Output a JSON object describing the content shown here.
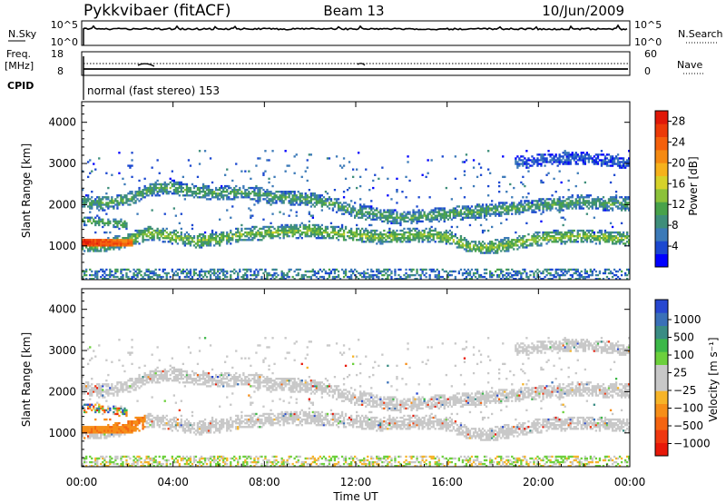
{
  "header": {
    "station": "Pykkvibaer (fitACF)",
    "beam": "Beam 13",
    "date": "10/Jun/2009"
  },
  "nsky_panel": {
    "left_label": "N.Sky",
    "right_label": "N.Search",
    "ticks_left": [
      "10^5",
      "10^0"
    ],
    "ticks_right": [
      "10^5",
      "10^0"
    ]
  },
  "freq_panel": {
    "left_label_1": "Freq.",
    "left_label_2": "[MHz]",
    "right_label": "Nave",
    "ticks_left": [
      "18",
      "8"
    ],
    "ticks_right": [
      "60",
      "0"
    ]
  },
  "cpid": {
    "label": "CPID",
    "text": "normal (fast stereo) 153"
  },
  "chart_data": [
    {
      "type": "heatmap",
      "panel": "power",
      "ylabel": "Slant Range [km]",
      "ylim": [
        180,
        4500
      ],
      "yticks": [
        1000,
        2000,
        3000,
        4000
      ],
      "xlim_hours": [
        0,
        24
      ],
      "colorbar": {
        "label": "Power [dB]",
        "range": [
          0,
          30
        ],
        "ticks": [
          "4",
          "8",
          "12",
          "16",
          "20",
          "24",
          "28"
        ],
        "colors": [
          "#0000ff",
          "#1b48d0",
          "#3c7ab8",
          "#3e8e7a",
          "#48a24a",
          "#8cc23a",
          "#d6d22a",
          "#f6b21c",
          "#f58a12",
          "#f4600c",
          "#ec3a08",
          "#e01808"
        ]
      },
      "bands": [
        {
          "name": "main",
          "points": [
            [
              0,
              1000
            ],
            [
              1,
              1000
            ],
            [
              2,
              1100
            ],
            [
              3,
              1300
            ],
            [
              4,
              1200
            ],
            [
              5,
              1100
            ],
            [
              6,
              1150
            ],
            [
              7,
              1250
            ],
            [
              8,
              1300
            ],
            [
              9,
              1320
            ],
            [
              10,
              1350
            ],
            [
              11,
              1300
            ],
            [
              12,
              1250
            ],
            [
              13,
              1200
            ],
            [
              14,
              1230
            ],
            [
              15,
              1250
            ],
            [
              16,
              1200
            ],
            [
              17,
              950
            ],
            [
              18,
              950
            ],
            [
              19,
              1050
            ],
            [
              20,
              1150
            ],
            [
              21,
              1200
            ],
            [
              22,
              1230
            ],
            [
              23,
              1180
            ],
            [
              24,
              1150
            ]
          ],
          "width": 170,
          "power": 14
        },
        {
          "name": "upper",
          "points": [
            [
              0,
              2050
            ],
            [
              1,
              2000
            ],
            [
              2,
              2100
            ],
            [
              3,
              2350
            ],
            [
              4,
              2400
            ],
            [
              5,
              2300
            ],
            [
              6,
              2250
            ],
            [
              7,
              2300
            ],
            [
              8,
              2200
            ],
            [
              9,
              2150
            ],
            [
              10,
              2100
            ],
            [
              11,
              2000
            ],
            [
              12,
              1800
            ],
            [
              13,
              1750
            ],
            [
              14,
              1650
            ],
            [
              15,
              1700
            ],
            [
              16,
              1750
            ],
            [
              17,
              1800
            ],
            [
              18,
              1850
            ],
            [
              19,
              1900
            ],
            [
              20,
              1950
            ],
            [
              21,
              2000
            ],
            [
              22,
              2050
            ],
            [
              23,
              2000
            ],
            [
              24,
              2000
            ]
          ],
          "width": 170,
          "power": 11
        },
        {
          "name": "lower-north",
          "points": [
            [
              0,
              1600
            ],
            [
              1,
              1550
            ],
            [
              2,
              1500
            ]
          ],
          "width": 110,
          "power": 12
        },
        {
          "name": "top-patch",
          "points": [
            [
              19,
              3000
            ],
            [
              20,
              3050
            ],
            [
              21,
              3100
            ],
            [
              22,
              3100
            ],
            [
              23,
              3050
            ],
            [
              24,
              3000
            ]
          ],
          "width": 150,
          "power": 5
        }
      ],
      "strong_echo": {
        "range": [
          950,
          1150
        ],
        "hours": [
          0,
          2.2
        ],
        "power": 28
      }
    },
    {
      "type": "heatmap",
      "panel": "velocity",
      "ylabel": "Slant Range [km]",
      "ylim": [
        180,
        4500
      ],
      "yticks": [
        1000,
        2000,
        3000,
        4000
      ],
      "xlim_hours": [
        0,
        24
      ],
      "xticks": [
        "00:00",
        "04:00",
        "08:00",
        "12:00",
        "16:00",
        "20:00",
        "00:00"
      ],
      "xlabel": "Time UT",
      "colorbar": {
        "label": "Velocity [m s⁻¹]",
        "range": [
          -1200,
          1200
        ],
        "ticks": [
          "1000",
          "500",
          "100",
          "25",
          "−25",
          "−100",
          "−500",
          "−1000"
        ],
        "colors": [
          "#e81808",
          "#f03810",
          "#f46410",
          "#f68e18",
          "#f6b428",
          "#c8c8c8",
          "#c8c8c8",
          "#6cd03c",
          "#3cb848",
          "#3a8c84",
          "#3a70b8",
          "#2848d0"
        ]
      },
      "ground_scatter_color": "#c8c8c8",
      "negative_echo": {
        "range": [
          950,
          1420
        ],
        "hours": [
          0,
          2.8
        ],
        "velocity": -150
      }
    }
  ]
}
